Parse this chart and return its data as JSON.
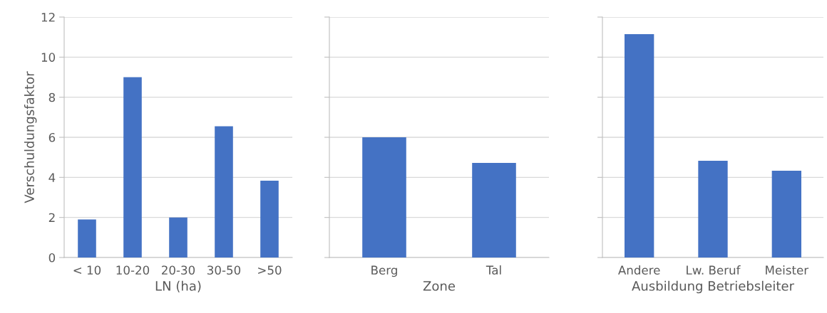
{
  "chart_data": [
    {
      "type": "bar",
      "xlabel": "LN (ha)",
      "ylabel": "Verschuldungsfaktor",
      "categories": [
        "< 10",
        "10-20",
        "20-30",
        "30-50",
        ">50"
      ],
      "values": [
        1.9,
        9.0,
        2.0,
        6.55,
        3.83
      ],
      "color": "#4472c4",
      "ylim": [
        0,
        12
      ],
      "yticks": [
        0,
        2,
        4,
        6,
        8,
        10,
        12
      ],
      "grid": "y"
    },
    {
      "type": "bar",
      "xlabel": "Zone",
      "categories": [
        "Berg",
        "Tal"
      ],
      "values": [
        6.0,
        4.72
      ],
      "color": "#4472c4",
      "ylim": [
        0,
        12
      ],
      "yticks": [
        0,
        2,
        4,
        6,
        8,
        10,
        12
      ],
      "grid": "y",
      "tick_labels": "x"
    },
    {
      "type": "bar",
      "xlabel": "Ausbildung Betriebsleiter",
      "categories": [
        "Andere",
        "Lw. Beruf",
        "Meister"
      ],
      "values": [
        11.15,
        4.83,
        4.33
      ],
      "color": "#4472c4",
      "ylim": [
        0,
        12
      ],
      "yticks": [
        0,
        2,
        4,
        6,
        8,
        10,
        12
      ],
      "grid": "y",
      "tick_labels": "x"
    }
  ]
}
